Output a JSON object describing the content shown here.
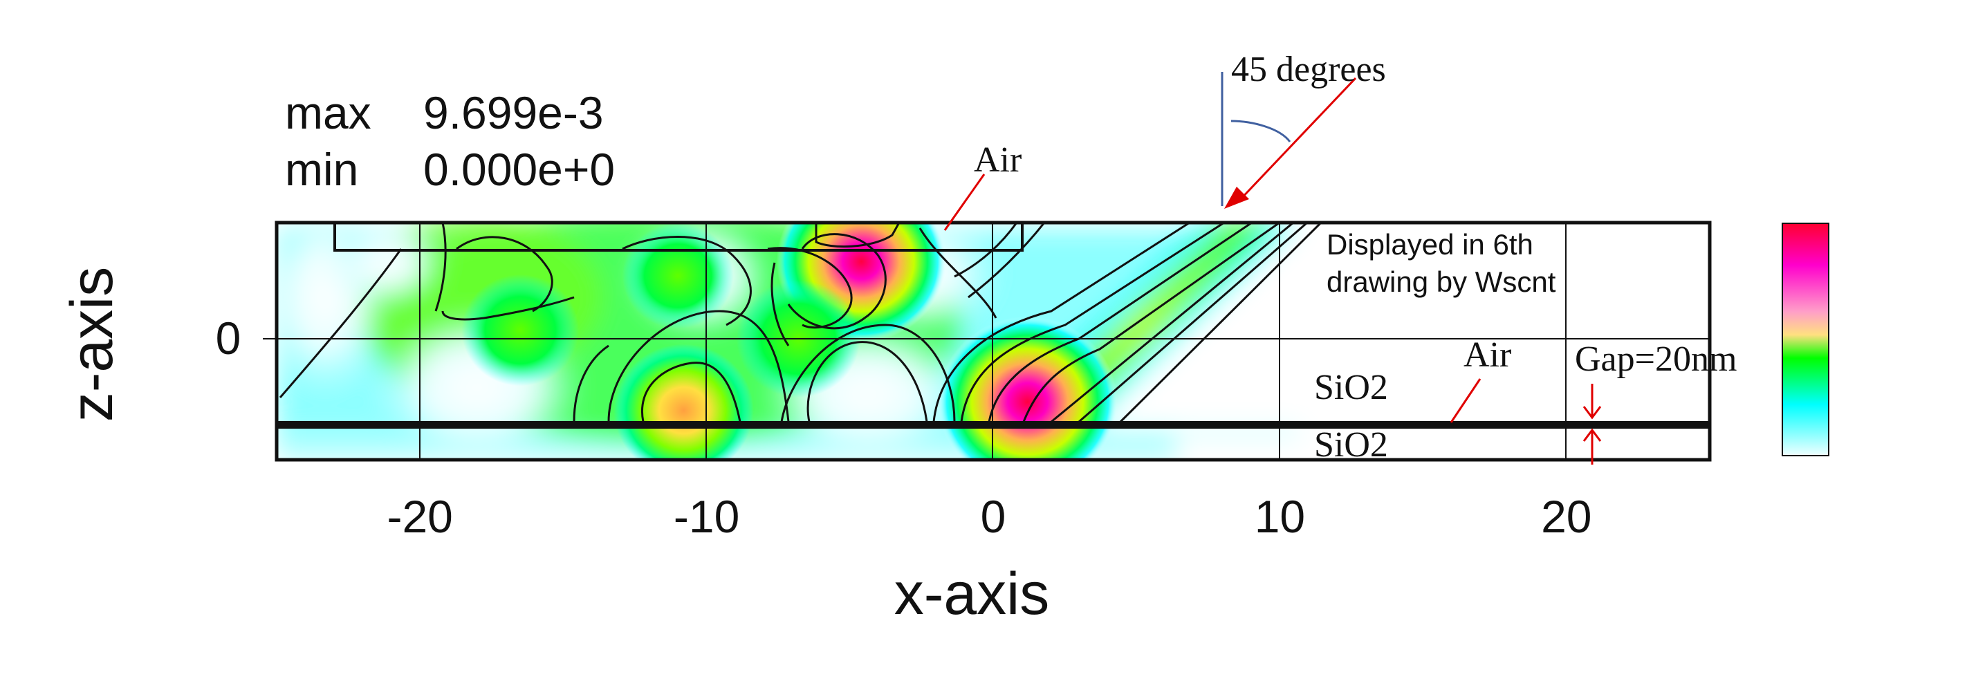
{
  "chart_data": {
    "type": "heatmap",
    "stats": {
      "max_label": "max",
      "max_value": "9.699e-3",
      "min_label": "min",
      "min_value": "0.000e+0"
    },
    "xlabel": "x-axis",
    "ylabel": "z-axis",
    "xlim": [
      -25,
      25
    ],
    "x_ticks": [
      -20,
      -10,
      0,
      10,
      20
    ],
    "x_tick_labels": [
      "-20",
      "-10",
      "0",
      "10",
      "20"
    ],
    "y_ticks": [
      0
    ],
    "y_tick_labels": [
      "0"
    ],
    "grid": true,
    "value_range": [
      0.0,
      0.009699
    ],
    "hotspots": [
      {
        "x": 1.2,
        "z": -2.2,
        "level": 1.0
      },
      {
        "x": -4.6,
        "z": 2.7,
        "level": 0.92
      },
      {
        "x": -10.8,
        "z": -2.5,
        "level": 0.68
      },
      {
        "x": -16.5,
        "z": 0.3,
        "level": 0.5
      },
      {
        "x": -11.0,
        "z": 2.2,
        "level": 0.45
      },
      {
        "x": -6.8,
        "z": 0.0,
        "level": 0.55
      }
    ],
    "annotations": {
      "angle": "45 degrees",
      "air_top": "Air",
      "air_right": "Air",
      "displayed_line1": "Displayed in 6th",
      "displayed_line2": "drawing by Wscnt",
      "sio2_upper": "SiO2",
      "sio2_lower": "SiO2",
      "gap": "Gap=20nm"
    },
    "colorbar": {
      "colors": [
        "#ff0030",
        "#ff00cc",
        "#ff60c0",
        "#ffe080",
        "#00ff00",
        "#00ffff",
        "#f0ffff"
      ]
    }
  }
}
